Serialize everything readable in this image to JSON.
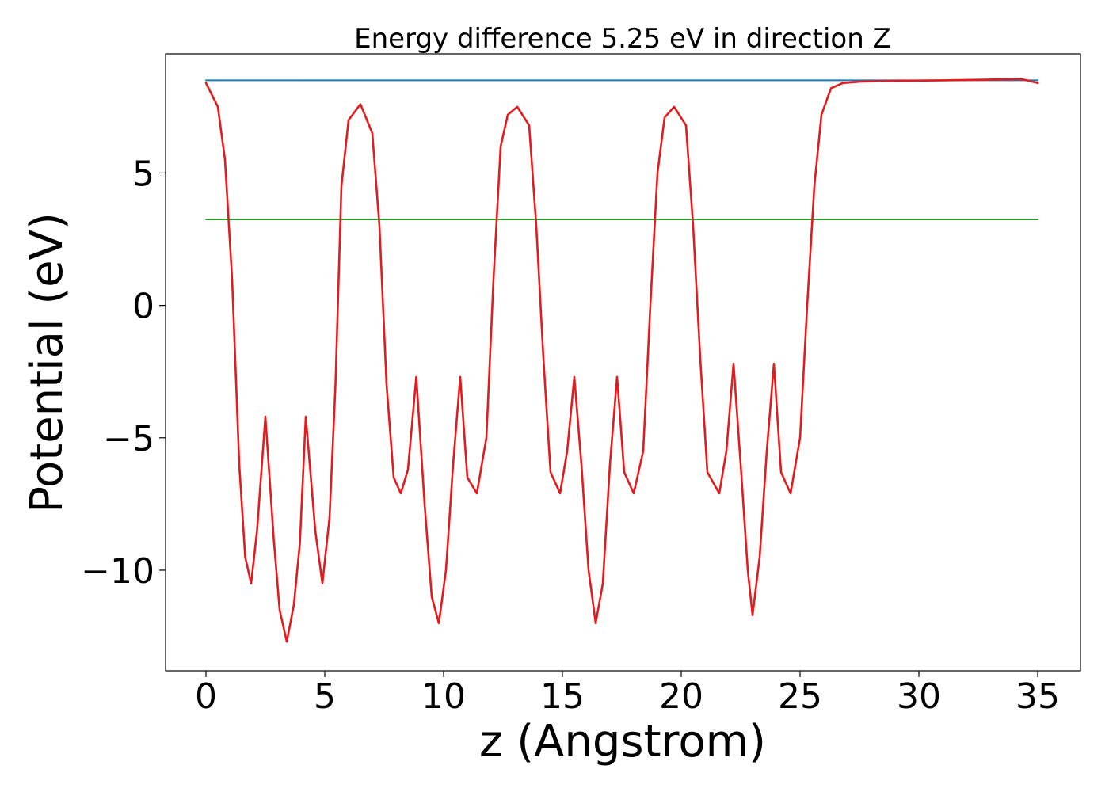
{
  "chart_data": {
    "type": "line",
    "title": "Energy difference 5.25 eV in direction Z",
    "xlabel": "z (Angstrom)",
    "ylabel": "Potential (eV)",
    "xlim": [
      -1.7,
      36.8
    ],
    "ylim": [
      -13.8,
      9.5
    ],
    "xticks": [
      0,
      5,
      10,
      15,
      20,
      25,
      30,
      35
    ],
    "xtick_labels": [
      "0",
      "5",
      "10",
      "15",
      "20",
      "25",
      "30",
      "35"
    ],
    "yticks": [
      -10,
      -5,
      0,
      5
    ],
    "ytick_labels": [
      "−10",
      "−5",
      "0",
      "5"
    ],
    "grid": false,
    "series": [
      {
        "color": "#1f77b4",
        "x": [
          0,
          35
        ],
        "y": [
          8.5,
          8.5
        ]
      },
      {
        "color": "#2ca02c",
        "x": [
          0,
          35
        ],
        "y": [
          3.25,
          3.25
        ]
      },
      {
        "color": "#e41a1c",
        "x": [
          0,
          0.5,
          0.8,
          1.1,
          1.4,
          1.65,
          1.9,
          2.15,
          2.5,
          2.85,
          3.1,
          3.4,
          3.7,
          3.95,
          4.2,
          4.6,
          4.9,
          5.2,
          5.45,
          5.7,
          6.0,
          6.5,
          7.0,
          7.3,
          7.6,
          7.9,
          8.2,
          8.5,
          8.85,
          9.2,
          9.5,
          9.8,
          10.1,
          10.4,
          10.7,
          11.0,
          11.4,
          11.8,
          12.1,
          12.4,
          12.7,
          13.1,
          13.6,
          13.9,
          14.2,
          14.5,
          14.9,
          15.2,
          15.5,
          15.8,
          16.1,
          16.4,
          16.7,
          17.0,
          17.3,
          17.6,
          18.0,
          18.4,
          18.7,
          19.0,
          19.3,
          19.7,
          20.2,
          20.5,
          20.8,
          21.1,
          21.6,
          21.9,
          22.2,
          22.5,
          22.8,
          23.0,
          23.3,
          23.6,
          23.9,
          24.2,
          24.6,
          25.0,
          25.3,
          25.6,
          25.9,
          26.3,
          26.8,
          27.5,
          29.0,
          31.0,
          33.0,
          34.3,
          35.0
        ],
        "y": [
          8.4,
          7.5,
          5.5,
          1.0,
          -6.0,
          -9.5,
          -10.5,
          -8.5,
          -4.2,
          -8.8,
          -11.5,
          -12.7,
          -11.3,
          -9.0,
          -4.2,
          -8.5,
          -10.5,
          -8.0,
          -3.0,
          4.5,
          7.0,
          7.6,
          6.5,
          3.0,
          -3.0,
          -6.5,
          -7.1,
          -6.2,
          -2.7,
          -7.5,
          -11.0,
          -12.0,
          -10.0,
          -6.0,
          -2.7,
          -6.5,
          -7.1,
          -5.0,
          1.0,
          6.0,
          7.2,
          7.5,
          6.8,
          3.0,
          -2.0,
          -6.3,
          -7.1,
          -5.5,
          -2.7,
          -6.0,
          -10.0,
          -12.0,
          -10.5,
          -6.0,
          -2.7,
          -6.3,
          -7.1,
          -5.5,
          0.0,
          5.0,
          7.1,
          7.5,
          6.8,
          3.0,
          -2.0,
          -6.3,
          -7.1,
          -5.5,
          -2.2,
          -6.0,
          -10.0,
          -11.7,
          -9.5,
          -5.5,
          -2.2,
          -6.3,
          -7.1,
          -5.0,
          0.0,
          4.5,
          7.2,
          8.2,
          8.4,
          8.45,
          8.48,
          8.5,
          8.53,
          8.55,
          8.4
        ]
      }
    ]
  }
}
